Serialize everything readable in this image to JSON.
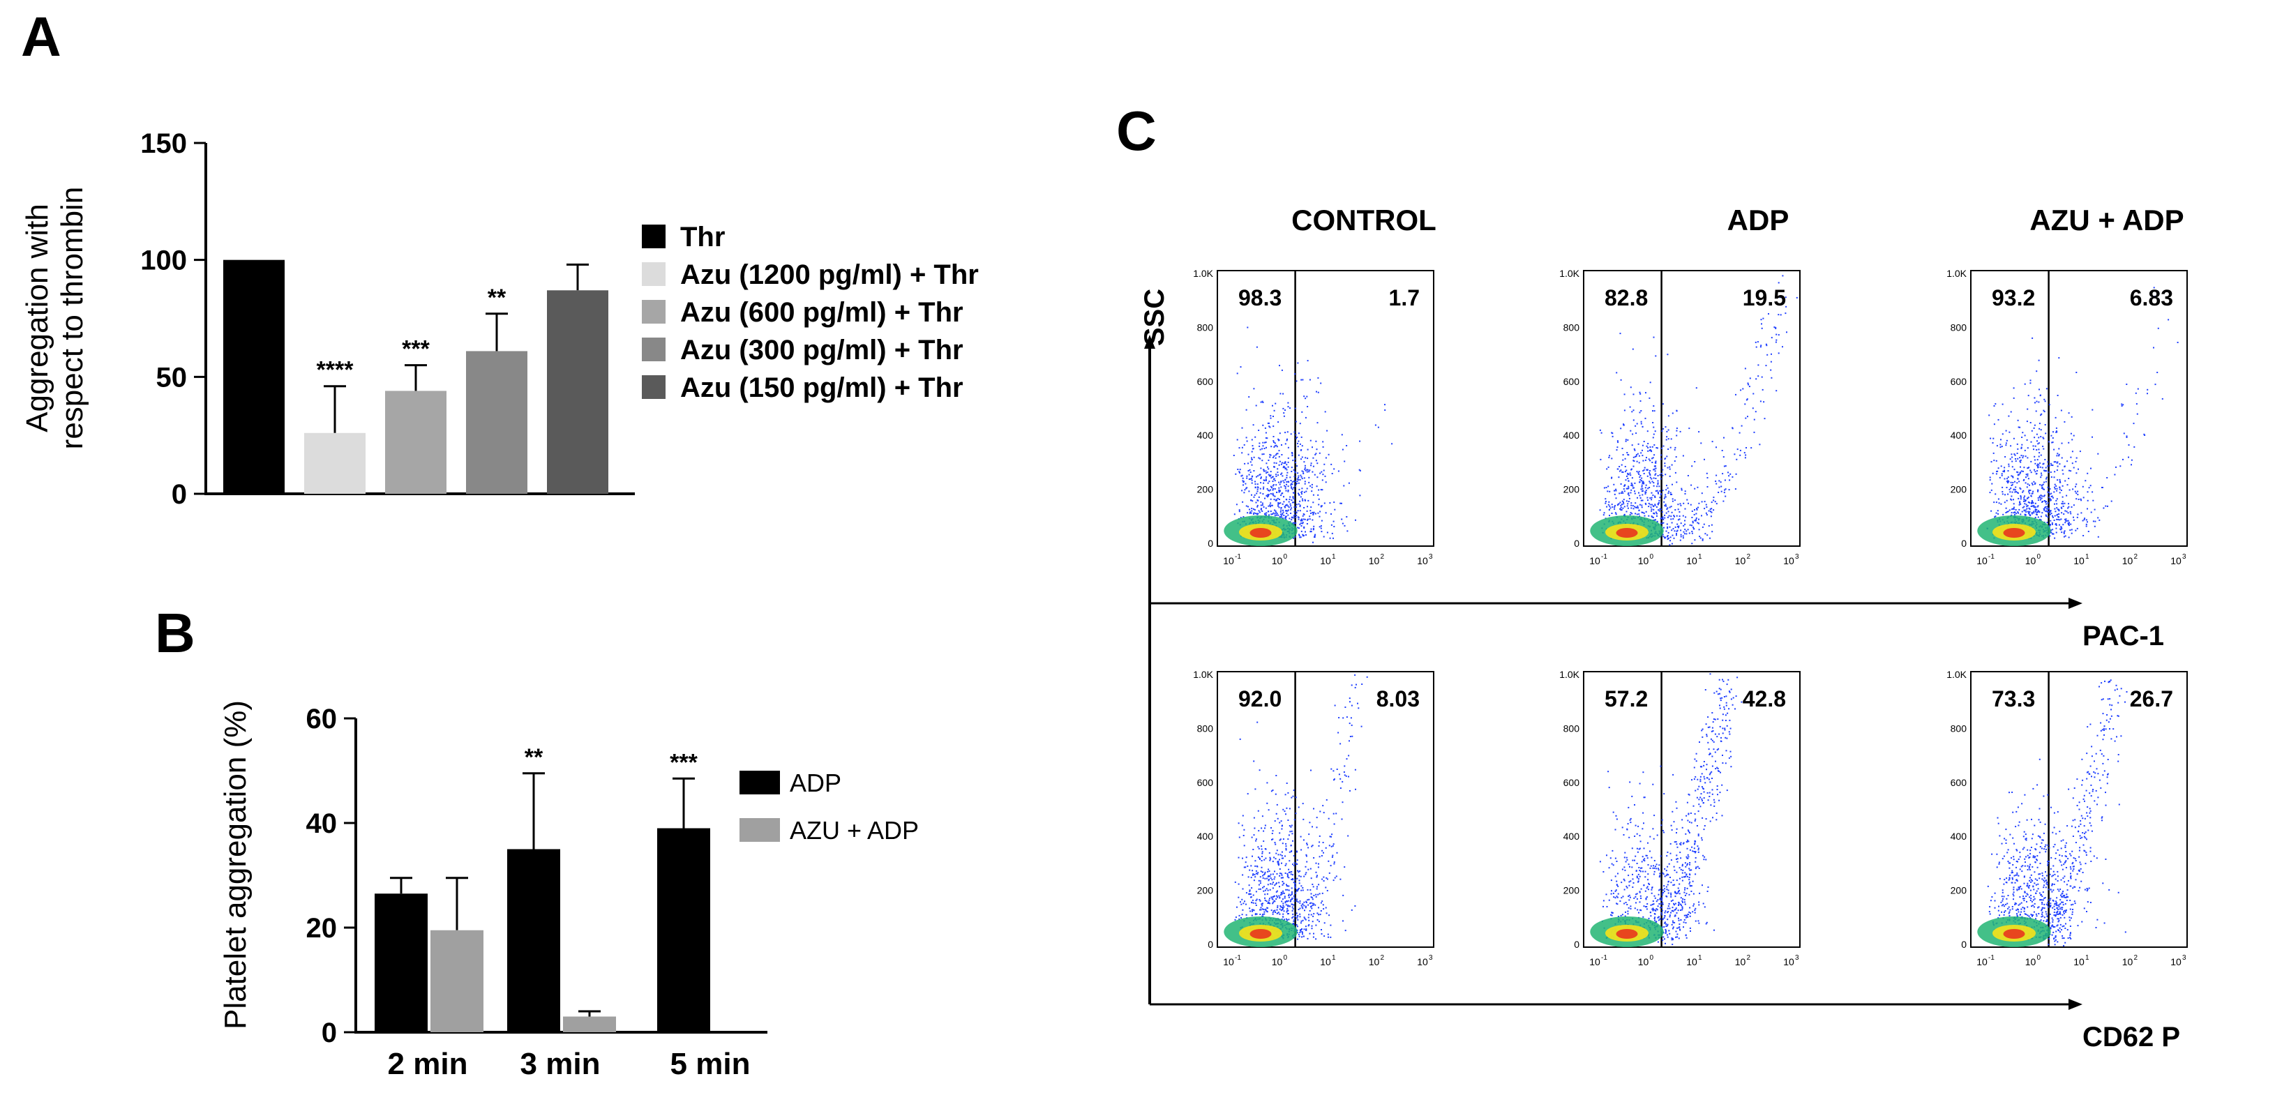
{
  "panels": {
    "a_label": "A",
    "b_label": "B",
    "c_label": "C"
  },
  "chart_data": [
    {
      "id": "A",
      "type": "bar",
      "ylabel_line1": "Aggregation with",
      "ylabel_line2": "respect to thrombin",
      "ylim": [
        0,
        150
      ],
      "yticks": [
        "0",
        "50",
        "100",
        "150"
      ],
      "categories": [
        "Thr",
        "Azu (1200 pg/ml) + Thr",
        "Azu (600 pg/ml) + Thr",
        "Azu (300 pg/ml) + Thr",
        "Azu (150 pg/ml) + Thr"
      ],
      "values": [
        100,
        26,
        44,
        61,
        87
      ],
      "errors": [
        0,
        20,
        11,
        16,
        11
      ],
      "colors": [
        "#000000",
        "#dcdcdc",
        "#a6a6a6",
        "#888888",
        "#5a5a5a"
      ],
      "significance": [
        "",
        "****",
        "***",
        "**",
        ""
      ]
    },
    {
      "id": "B",
      "type": "bar",
      "ylabel": "Platelet aggregation (%)",
      "ylim": [
        0,
        60
      ],
      "yticks": [
        "0",
        "20",
        "40",
        "60"
      ],
      "categories": [
        "2 min",
        "3 min",
        "5 min"
      ],
      "series": [
        {
          "name": "ADP",
          "color": "#000000",
          "values": [
            26.5,
            35,
            39
          ],
          "errors": [
            3,
            14.5,
            9.5
          ]
        },
        {
          "name": "AZU + ADP",
          "color": "#a0a0a0",
          "values": [
            19.5,
            3,
            0
          ],
          "errors": [
            10,
            1,
            0
          ]
        }
      ],
      "significance": [
        "",
        "**",
        "***"
      ]
    },
    {
      "id": "C",
      "type": "scatter",
      "columns": [
        "CONTROL",
        "ADP",
        "AZU + ADP"
      ],
      "y_axis_label": "SSC",
      "rows": [
        {
          "x_axis_label": "PAC-1",
          "percent_left": [
            "98.3",
            "82.8",
            "93.2"
          ],
          "percent_right": [
            "1.7",
            "19.5",
            "6.83"
          ]
        },
        {
          "x_axis_label": "CD62 P",
          "percent_left": [
            "92.0",
            "57.2",
            "73.3"
          ],
          "percent_right": [
            "8.03",
            "42.8",
            "26.7"
          ]
        }
      ],
      "y_ticks": [
        "0",
        "200",
        "400",
        "600",
        "800",
        "1.0K"
      ],
      "x_ticks": [
        "10",
        "10",
        "10",
        "10",
        "10"
      ],
      "x_tick_exponents": [
        "-1",
        "0",
        "1",
        "2",
        "3"
      ]
    }
  ]
}
